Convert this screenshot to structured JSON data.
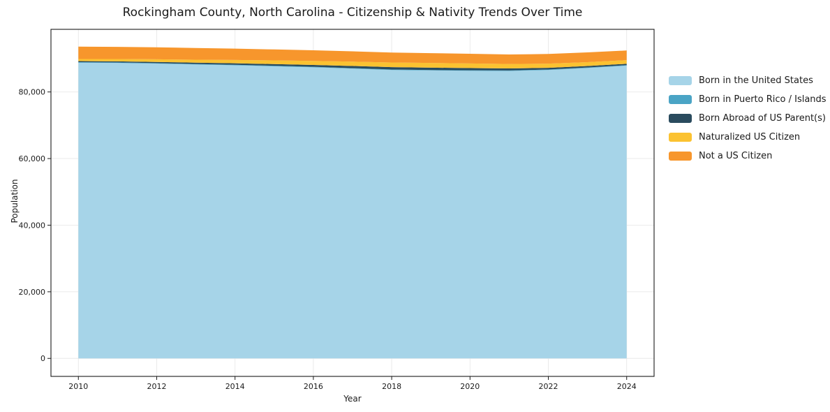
{
  "title": "Rockingham County, North Carolina - Citizenship & Nativity Trends Over Time",
  "chart_data": {
    "type": "area",
    "stacked": true,
    "title": "Rockingham County, North Carolina - Citizenship & Nativity Trends Over Time",
    "xlabel": "Year",
    "ylabel": "Population",
    "x": [
      2010,
      2011,
      2012,
      2013,
      2014,
      2015,
      2016,
      2017,
      2018,
      2019,
      2020,
      2021,
      2022,
      2023,
      2024
    ],
    "series": [
      {
        "name": "Born in the United States",
        "color": "#A6D4E8",
        "values": [
          88800,
          88700,
          88500,
          88250,
          88000,
          87700,
          87400,
          87000,
          86600,
          86450,
          86350,
          86300,
          86600,
          87200,
          87900
        ]
      },
      {
        "name": "Born in Puerto Rico / Islands",
        "color": "#4AA4C5",
        "values": [
          150,
          160,
          150,
          140,
          150,
          160,
          150,
          150,
          140,
          150,
          160,
          150,
          150,
          140,
          150
        ]
      },
      {
        "name": "Born Abroad of US Parent(s)",
        "color": "#2A4B5E",
        "values": [
          300,
          320,
          350,
          400,
          450,
          500,
          550,
          650,
          700,
          700,
          650,
          600,
          500,
          450,
          400
        ]
      },
      {
        "name": "Naturalized US Citizen",
        "color": "#FBC231",
        "values": [
          650,
          700,
          800,
          900,
          1000,
          1100,
          1200,
          1300,
          1400,
          1400,
          1400,
          1350,
          1250,
          1150,
          1100
        ]
      },
      {
        "name": "Not a US Citizen",
        "color": "#F7962C",
        "values": [
          3700,
          3650,
          3600,
          3500,
          3400,
          3300,
          3200,
          3100,
          3000,
          2950,
          2900,
          2850,
          2900,
          2950,
          2900
        ]
      }
    ],
    "xticks": [
      2010,
      2012,
      2014,
      2016,
      2018,
      2020,
      2022,
      2024
    ],
    "xtick_labels": [
      "2010",
      "2012",
      "2014",
      "2016",
      "2018",
      "2020",
      "2022",
      "2024"
    ],
    "yticks": [
      0,
      20000,
      40000,
      60000,
      80000
    ],
    "ytick_labels": [
      "0",
      "20,000",
      "40,000",
      "60,000",
      "80,000"
    ],
    "xlim": [
      2009.3,
      2024.7
    ],
    "ylim": [
      -5400,
      98800
    ],
    "grid": true,
    "grid_color": "#e8e8e8",
    "axis_color": "#1a1a1a",
    "legend_position": "right"
  }
}
